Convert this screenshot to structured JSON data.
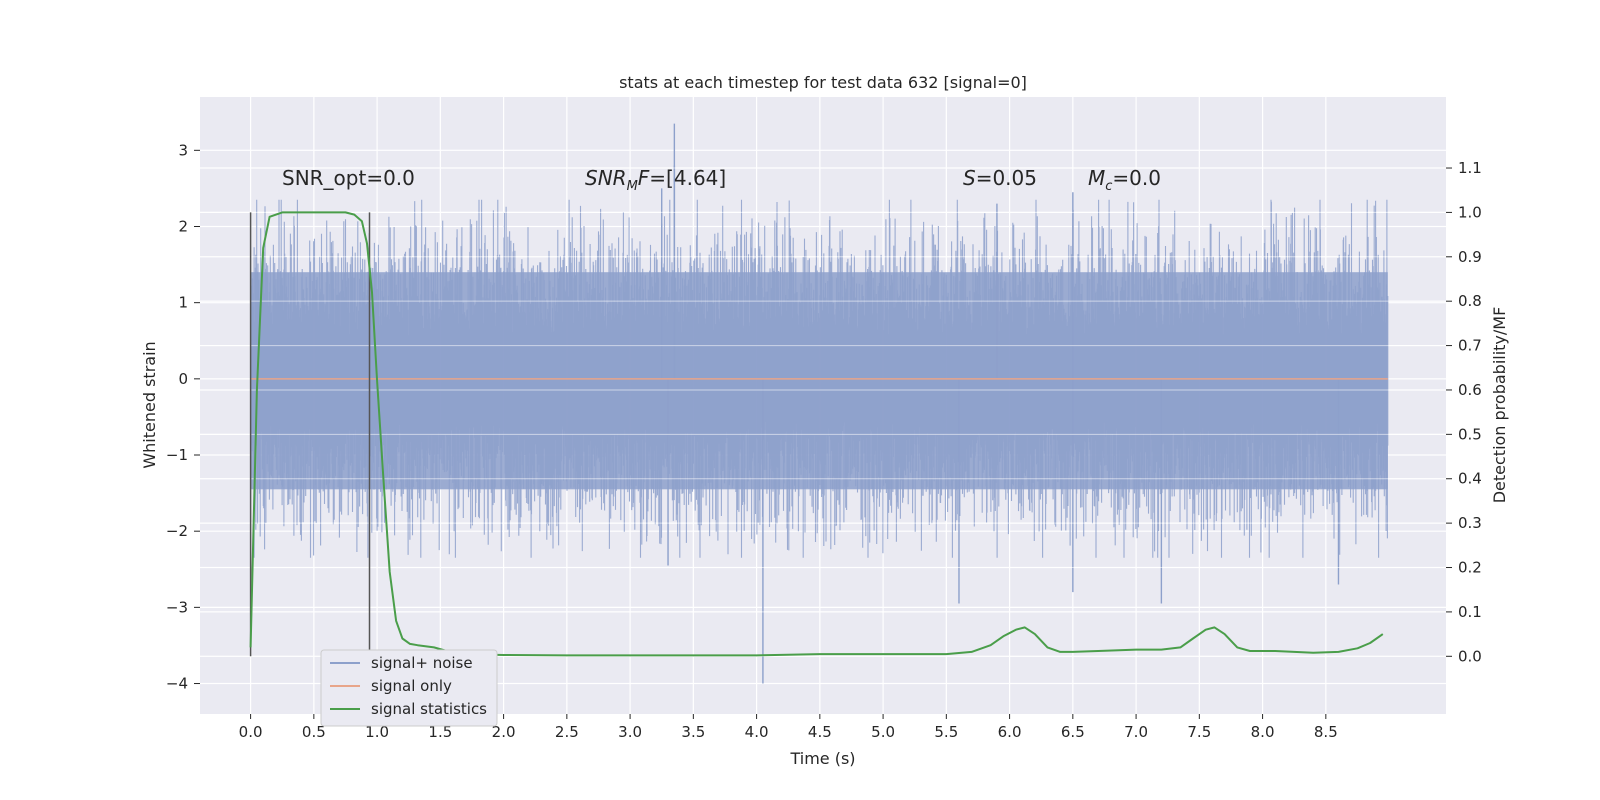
{
  "chart_data": {
    "type": "line",
    "title": "stats at each timestep for test data 632 [signal=0]",
    "xlabel": "Time (s)",
    "ylabel": "Whitened strain",
    "y2label": "Detection probability/MF",
    "xlim": [
      -0.4,
      9.45
    ],
    "ylim": [
      -4.4,
      3.7
    ],
    "y2lim": [
      -0.13,
      1.26
    ],
    "xticks": [
      0.0,
      0.5,
      1.0,
      1.5,
      2.0,
      2.5,
      3.0,
      3.5,
      4.0,
      4.5,
      5.0,
      5.5,
      6.0,
      6.5,
      7.0,
      7.5,
      8.0,
      8.5
    ],
    "xtick_labels": [
      "0.0",
      "0.5",
      "1.0",
      "1.5",
      "2.0",
      "2.5",
      "3.0",
      "3.5",
      "4.0",
      "4.5",
      "5.0",
      "5.5",
      "6.0",
      "6.5",
      "7.0",
      "7.5",
      "8.0",
      "8.5"
    ],
    "yticks": [
      3,
      2,
      1,
      0,
      -1,
      -2,
      -3,
      -4
    ],
    "ytick_labels": [
      "3",
      "2",
      "1",
      "0",
      "−1",
      "−2",
      "−3",
      "−4"
    ],
    "y2ticks": [
      1.1,
      1.0,
      0.9,
      0.8,
      0.7,
      0.6,
      0.5,
      0.4,
      0.3,
      0.2,
      0.1,
      0.0
    ],
    "y2tick_labels": [
      "1.1",
      "1.0",
      "0.9",
      "0.8",
      "0.7",
      "0.6",
      "0.5",
      "0.4",
      "0.3",
      "0.2",
      "0.1",
      "0.0"
    ],
    "annotations": {
      "snr_opt": "SNR_opt=0.0",
      "snr_mf_var": "SNR",
      "snr_mf_sub": "M",
      "snr_mf_tail": "F",
      "snr_mf_value": "=[4.64]",
      "s_var": "S",
      "s_value": "=0.05",
      "mc_var": "M",
      "mc_sub": "c",
      "mc_value": "=0.0"
    },
    "vertical_markers": [
      0.0,
      0.94
    ],
    "series": [
      {
        "name": "signal+ noise",
        "color": "#8da0cb",
        "axis": "left",
        "kind": "noise-band",
        "x_range": [
          0.0,
          8.99
        ],
        "core_range": [
          -1.45,
          1.4
        ],
        "outliers": [
          {
            "x": 3.35,
            "y": 3.35
          },
          {
            "x": 3.35,
            "y": 2.8
          },
          {
            "x": 4.05,
            "y": -4.0
          },
          {
            "x": 6.5,
            "y": 2.45
          },
          {
            "x": 3.25,
            "y": 2.5
          },
          {
            "x": 5.9,
            "y": 2.3
          },
          {
            "x": 8.6,
            "y": -2.7
          },
          {
            "x": 5.6,
            "y": -2.95
          },
          {
            "x": 7.2,
            "y": -2.95
          },
          {
            "x": 6.5,
            "y": -2.8
          },
          {
            "x": 3.3,
            "y": -2.45
          }
        ]
      },
      {
        "name": "signal only",
        "color": "#e8a58a",
        "axis": "left",
        "x": [
          0.0,
          8.99
        ],
        "y": [
          0.0,
          0.0
        ]
      },
      {
        "name": "signal statistics",
        "color": "#4a9e4a",
        "axis": "right",
        "x": [
          0.0,
          0.05,
          0.1,
          0.15,
          0.25,
          0.35,
          0.5,
          0.65,
          0.75,
          0.82,
          0.88,
          0.92,
          0.96,
          1.0,
          1.05,
          1.1,
          1.15,
          1.2,
          1.26,
          1.32,
          1.45,
          1.6,
          1.8,
          2.0,
          2.5,
          3.0,
          3.5,
          4.0,
          4.5,
          5.0,
          5.5,
          5.7,
          5.85,
          5.95,
          6.05,
          6.12,
          6.2,
          6.3,
          6.4,
          6.5,
          6.7,
          7.0,
          7.2,
          7.35,
          7.45,
          7.55,
          7.62,
          7.7,
          7.8,
          7.9,
          8.1,
          8.4,
          8.6,
          8.75,
          8.85,
          8.95
        ],
        "y": [
          0.02,
          0.6,
          0.92,
          0.99,
          1.0,
          1.0,
          1.0,
          1.0,
          1.0,
          0.995,
          0.98,
          0.93,
          0.82,
          0.62,
          0.4,
          0.19,
          0.08,
          0.04,
          0.028,
          0.025,
          0.02,
          0.008,
          0.004,
          0.003,
          0.002,
          0.002,
          0.002,
          0.002,
          0.005,
          0.005,
          0.005,
          0.01,
          0.025,
          0.045,
          0.06,
          0.065,
          0.05,
          0.02,
          0.01,
          0.01,
          0.012,
          0.015,
          0.015,
          0.02,
          0.04,
          0.06,
          0.065,
          0.05,
          0.02,
          0.012,
          0.012,
          0.008,
          0.01,
          0.018,
          0.03,
          0.05
        ]
      }
    ],
    "legend": {
      "placement": "lower-left",
      "entries": [
        "signal+ noise",
        "signal only",
        "signal statistics"
      ]
    },
    "grid": true
  },
  "colors": {
    "plot_background": "#eaeaf2",
    "grid": "#ffffff",
    "text": "#262626",
    "marker": "#555555"
  }
}
